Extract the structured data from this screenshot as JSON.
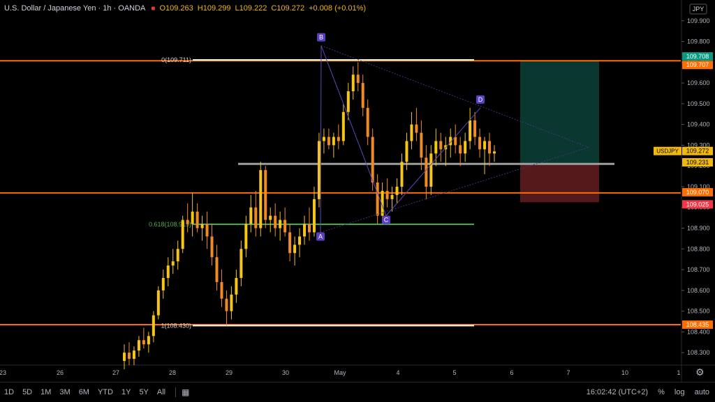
{
  "header": {
    "symbol_title": "U.S. Dollar / Japanese Yen · 1h · OANDA",
    "open": "O109.263",
    "high": "H109.299",
    "low": "L109.222",
    "close": "C109.272",
    "change": "+0.008 (+0.01%)"
  },
  "currency_button": "JPY",
  "bottom": {
    "timeframes": [
      "1D",
      "5D",
      "1M",
      "3M",
      "6M",
      "YTD",
      "1Y",
      "5Y",
      "All"
    ],
    "time": "16:02:42 (UTC+2)",
    "percent": "%",
    "log": "log",
    "auto": "auto"
  },
  "chart_data": {
    "type": "candlestick",
    "symbol": "USDJPY",
    "interval": "1h",
    "x_ticks": [
      "23",
      "26",
      "27",
      "28",
      "29",
      "30",
      "May",
      "4",
      "5",
      "6",
      "7",
      "10",
      "1"
    ],
    "y_ticks": [
      108.3,
      108.4,
      108.5,
      108.6,
      108.7,
      108.8,
      108.9,
      109.0,
      109.1,
      109.2,
      109.3,
      109.4,
      109.5,
      109.6,
      109.7,
      109.8,
      109.9
    ],
    "ylim": [
      108.24,
      110.0
    ],
    "price_labels": [
      {
        "value": "109.708",
        "color": "#089981"
      },
      {
        "value": "109.707",
        "color": "#ff6d00"
      },
      {
        "value": "109.272",
        "color": "#f0b90b",
        "tag": "USDJPY"
      },
      {
        "value": "109.231",
        "color": "#f0b90b"
      },
      {
        "value": "109.070",
        "color": "#ff6d00"
      },
      {
        "value": "109.025",
        "color": "#f23645"
      },
      {
        "value": "108.435",
        "color": "#ff6d00"
      }
    ],
    "horizontal_lines": [
      {
        "price": 109.707,
        "color": "#ff6d00"
      },
      {
        "price": 109.07,
        "color": "#ff6d00"
      },
      {
        "price": 108.435,
        "color": "#ff6d00"
      },
      {
        "price": 109.21,
        "color": "#9e9e9e"
      }
    ],
    "fib_levels": [
      {
        "label": "0(109.711)",
        "price": 109.711,
        "color": "#ffffff"
      },
      {
        "label": "0.618(108.919)",
        "price": 108.919,
        "color": "#4caf50"
      },
      {
        "label": "1(108.430)",
        "price": 108.43,
        "color": "#ffffff"
      }
    ],
    "pattern_points": [
      {
        "label": "A",
        "price": 108.88
      },
      {
        "label": "B",
        "price": 109.78
      },
      {
        "label": "C",
        "price": 108.96
      },
      {
        "label": "D",
        "price": 109.48
      }
    ],
    "position_tool": {
      "entry": 109.21,
      "target": 109.707,
      "stop": 109.025
    },
    "candles": [
      [
        108.26,
        108.34,
        108.22,
        108.3
      ],
      [
        108.3,
        108.35,
        108.24,
        108.27
      ],
      [
        108.27,
        108.33,
        108.24,
        108.31
      ],
      [
        108.31,
        108.38,
        108.28,
        108.36
      ],
      [
        108.36,
        108.42,
        108.32,
        108.34
      ],
      [
        108.34,
        108.4,
        108.3,
        108.38
      ],
      [
        108.38,
        108.5,
        108.35,
        108.48
      ],
      [
        108.48,
        108.62,
        108.46,
        108.6
      ],
      [
        108.6,
        108.7,
        108.56,
        108.66
      ],
      [
        108.66,
        108.76,
        108.62,
        108.72
      ],
      [
        108.72,
        108.8,
        108.68,
        108.74
      ],
      [
        108.74,
        108.84,
        108.7,
        108.8
      ],
      [
        108.8,
        108.96,
        108.78,
        108.94
      ],
      [
        108.94,
        109.02,
        108.88,
        108.92
      ],
      [
        108.92,
        109.07,
        108.86,
        108.98
      ],
      [
        108.98,
        109.02,
        108.88,
        108.9
      ],
      [
        108.9,
        108.96,
        108.84,
        108.92
      ],
      [
        108.92,
        108.98,
        108.8,
        108.86
      ],
      [
        108.86,
        108.92,
        108.72,
        108.76
      ],
      [
        108.76,
        108.82,
        108.6,
        108.64
      ],
      [
        108.64,
        108.7,
        108.52,
        108.56
      ],
      [
        108.56,
        108.6,
        108.43,
        108.5
      ],
      [
        108.5,
        108.62,
        108.46,
        108.58
      ],
      [
        108.58,
        108.7,
        108.54,
        108.66
      ],
      [
        108.66,
        108.84,
        108.62,
        108.8
      ],
      [
        108.8,
        108.96,
        108.76,
        108.92
      ],
      [
        108.92,
        109.06,
        108.88,
        109.0
      ],
      [
        109.0,
        109.08,
        108.86,
        108.9
      ],
      [
        108.9,
        109.22,
        108.86,
        109.18
      ],
      [
        109.18,
        109.2,
        108.9,
        108.94
      ],
      [
        108.94,
        109.0,
        108.88,
        108.96
      ],
      [
        108.96,
        109.02,
        108.86,
        108.9
      ],
      [
        108.9,
        108.98,
        108.84,
        108.94
      ],
      [
        108.94,
        109.0,
        108.86,
        108.88
      ],
      [
        108.88,
        108.92,
        108.74,
        108.78
      ],
      [
        108.78,
        108.86,
        108.72,
        108.82
      ],
      [
        108.82,
        108.9,
        108.76,
        108.86
      ],
      [
        108.86,
        108.96,
        108.82,
        108.92
      ],
      [
        108.92,
        109.0,
        108.84,
        108.88
      ],
      [
        108.88,
        109.1,
        108.86,
        109.04
      ],
      [
        109.04,
        109.36,
        109.0,
        109.32
      ],
      [
        109.32,
        109.38,
        109.26,
        109.34
      ],
      [
        109.34,
        109.38,
        109.28,
        109.3
      ],
      [
        109.3,
        109.36,
        109.24,
        109.34
      ],
      [
        109.34,
        109.4,
        109.28,
        109.32
      ],
      [
        109.32,
        109.5,
        109.3,
        109.46
      ],
      [
        109.46,
        109.6,
        109.42,
        109.56
      ],
      [
        109.56,
        109.68,
        109.52,
        109.64
      ],
      [
        109.64,
        109.7,
        109.56,
        109.6
      ],
      [
        109.6,
        109.64,
        109.44,
        109.48
      ],
      [
        109.48,
        109.52,
        109.3,
        109.34
      ],
      [
        109.34,
        109.38,
        109.08,
        109.12
      ],
      [
        109.12,
        109.16,
        108.92,
        108.96
      ],
      [
        108.96,
        109.12,
        108.92,
        109.08
      ],
      [
        109.08,
        109.14,
        109.0,
        109.04
      ],
      [
        109.04,
        109.1,
        108.98,
        109.06
      ],
      [
        109.06,
        109.14,
        109.02,
        109.1
      ],
      [
        109.1,
        109.26,
        109.06,
        109.22
      ],
      [
        109.22,
        109.36,
        109.18,
        109.32
      ],
      [
        109.32,
        109.46,
        109.28,
        109.4
      ],
      [
        109.4,
        109.48,
        109.32,
        109.36
      ],
      [
        109.36,
        109.42,
        109.18,
        109.24
      ],
      [
        109.24,
        109.3,
        109.04,
        109.1
      ],
      [
        109.1,
        109.3,
        109.06,
        109.26
      ],
      [
        109.26,
        109.38,
        109.2,
        109.32
      ],
      [
        109.32,
        109.36,
        109.22,
        109.28
      ],
      [
        109.28,
        109.34,
        109.2,
        109.3
      ],
      [
        109.3,
        109.38,
        109.24,
        109.34
      ],
      [
        109.34,
        109.4,
        109.26,
        109.3
      ],
      [
        109.3,
        109.34,
        109.2,
        109.26
      ],
      [
        109.26,
        109.36,
        109.22,
        109.32
      ],
      [
        109.32,
        109.48,
        109.28,
        109.42
      ],
      [
        109.42,
        109.46,
        109.3,
        109.34
      ],
      [
        109.34,
        109.38,
        109.24,
        109.28
      ],
      [
        109.28,
        109.34,
        109.16,
        109.32
      ],
      [
        109.32,
        109.36,
        109.2,
        109.26
      ],
      [
        109.26,
        109.3,
        109.22,
        109.27
      ]
    ]
  }
}
